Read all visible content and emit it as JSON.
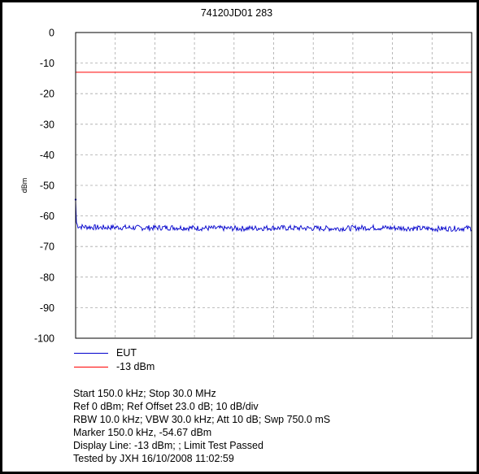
{
  "chart_data": {
    "type": "line",
    "title": "74120JD01 283",
    "xlabel": "",
    "ylabel": "dBm",
    "xlim": [
      0.15,
      30.0
    ],
    "ylim": [
      -100,
      0
    ],
    "yticks": [
      "0",
      "-10",
      "-20",
      "-30",
      "-40",
      "-50",
      "-60",
      "-70",
      "-80",
      "-90",
      "-100"
    ],
    "grid": true,
    "legend_position": "bottom-left",
    "series": [
      {
        "name": "EUT",
        "color": "#0000cc",
        "x": [
          0.15,
          0.2,
          0.3,
          0.5,
          1.0,
          2.0,
          3.0,
          5.0,
          7.5,
          10.0,
          12.5,
          15.0,
          17.5,
          20.0,
          22.5,
          25.0,
          27.5,
          30.0
        ],
        "values": [
          -54.67,
          -62.0,
          -63.2,
          -63.5,
          -63.6,
          -63.8,
          -63.7,
          -63.9,
          -63.8,
          -64.0,
          -64.1,
          -63.9,
          -64.0,
          -64.1,
          -63.8,
          -64.0,
          -64.2,
          -64.0
        ]
      },
      {
        "name": "-13 dBm",
        "color": "#ff0000",
        "x": [
          0.15,
          30.0
        ],
        "values": [
          -13,
          -13
        ]
      }
    ]
  },
  "info": {
    "line1": "Start 150.0 kHz; Stop 30.0 MHz",
    "line2": "Ref 0 dBm; Ref Offset 23.0 dB; 10 dB/div",
    "line3": "RBW 10.0 kHz; VBW 30.0 kHz; Att 10 dB; Swp 750.0 mS",
    "line4": "Marker 150.0 kHz, -54.67 dBm",
    "line5": "Display Line: -13 dBm; ; Limit Test Passed",
    "line6": "Tested by JXH 16/10/2008 11:02:59"
  }
}
